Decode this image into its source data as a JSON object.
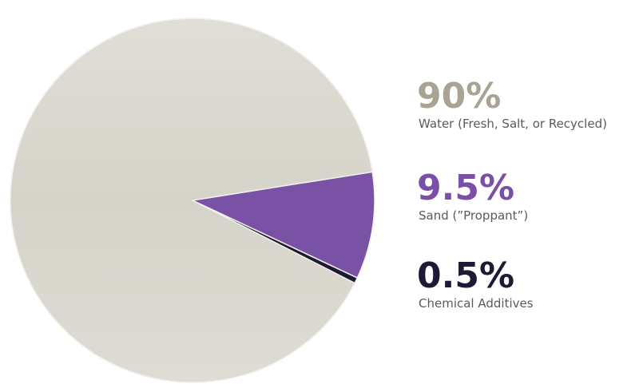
{
  "chart_data": {
    "type": "pie",
    "categories": [
      "Water (Fresh, Salt, or Recycled)",
      "Sand (”Proppant”)",
      "Chemical Additives"
    ],
    "values": [
      90,
      9.5,
      0.5
    ],
    "value_labels": [
      "90%",
      "9.5%",
      "0.5%"
    ],
    "colors": [
      "#d6d3ca",
      "#7a52a5",
      "#1d1a33"
    ],
    "label_colors": [
      "#a9a393",
      "#7a4fa8",
      "#1c1a35"
    ]
  }
}
